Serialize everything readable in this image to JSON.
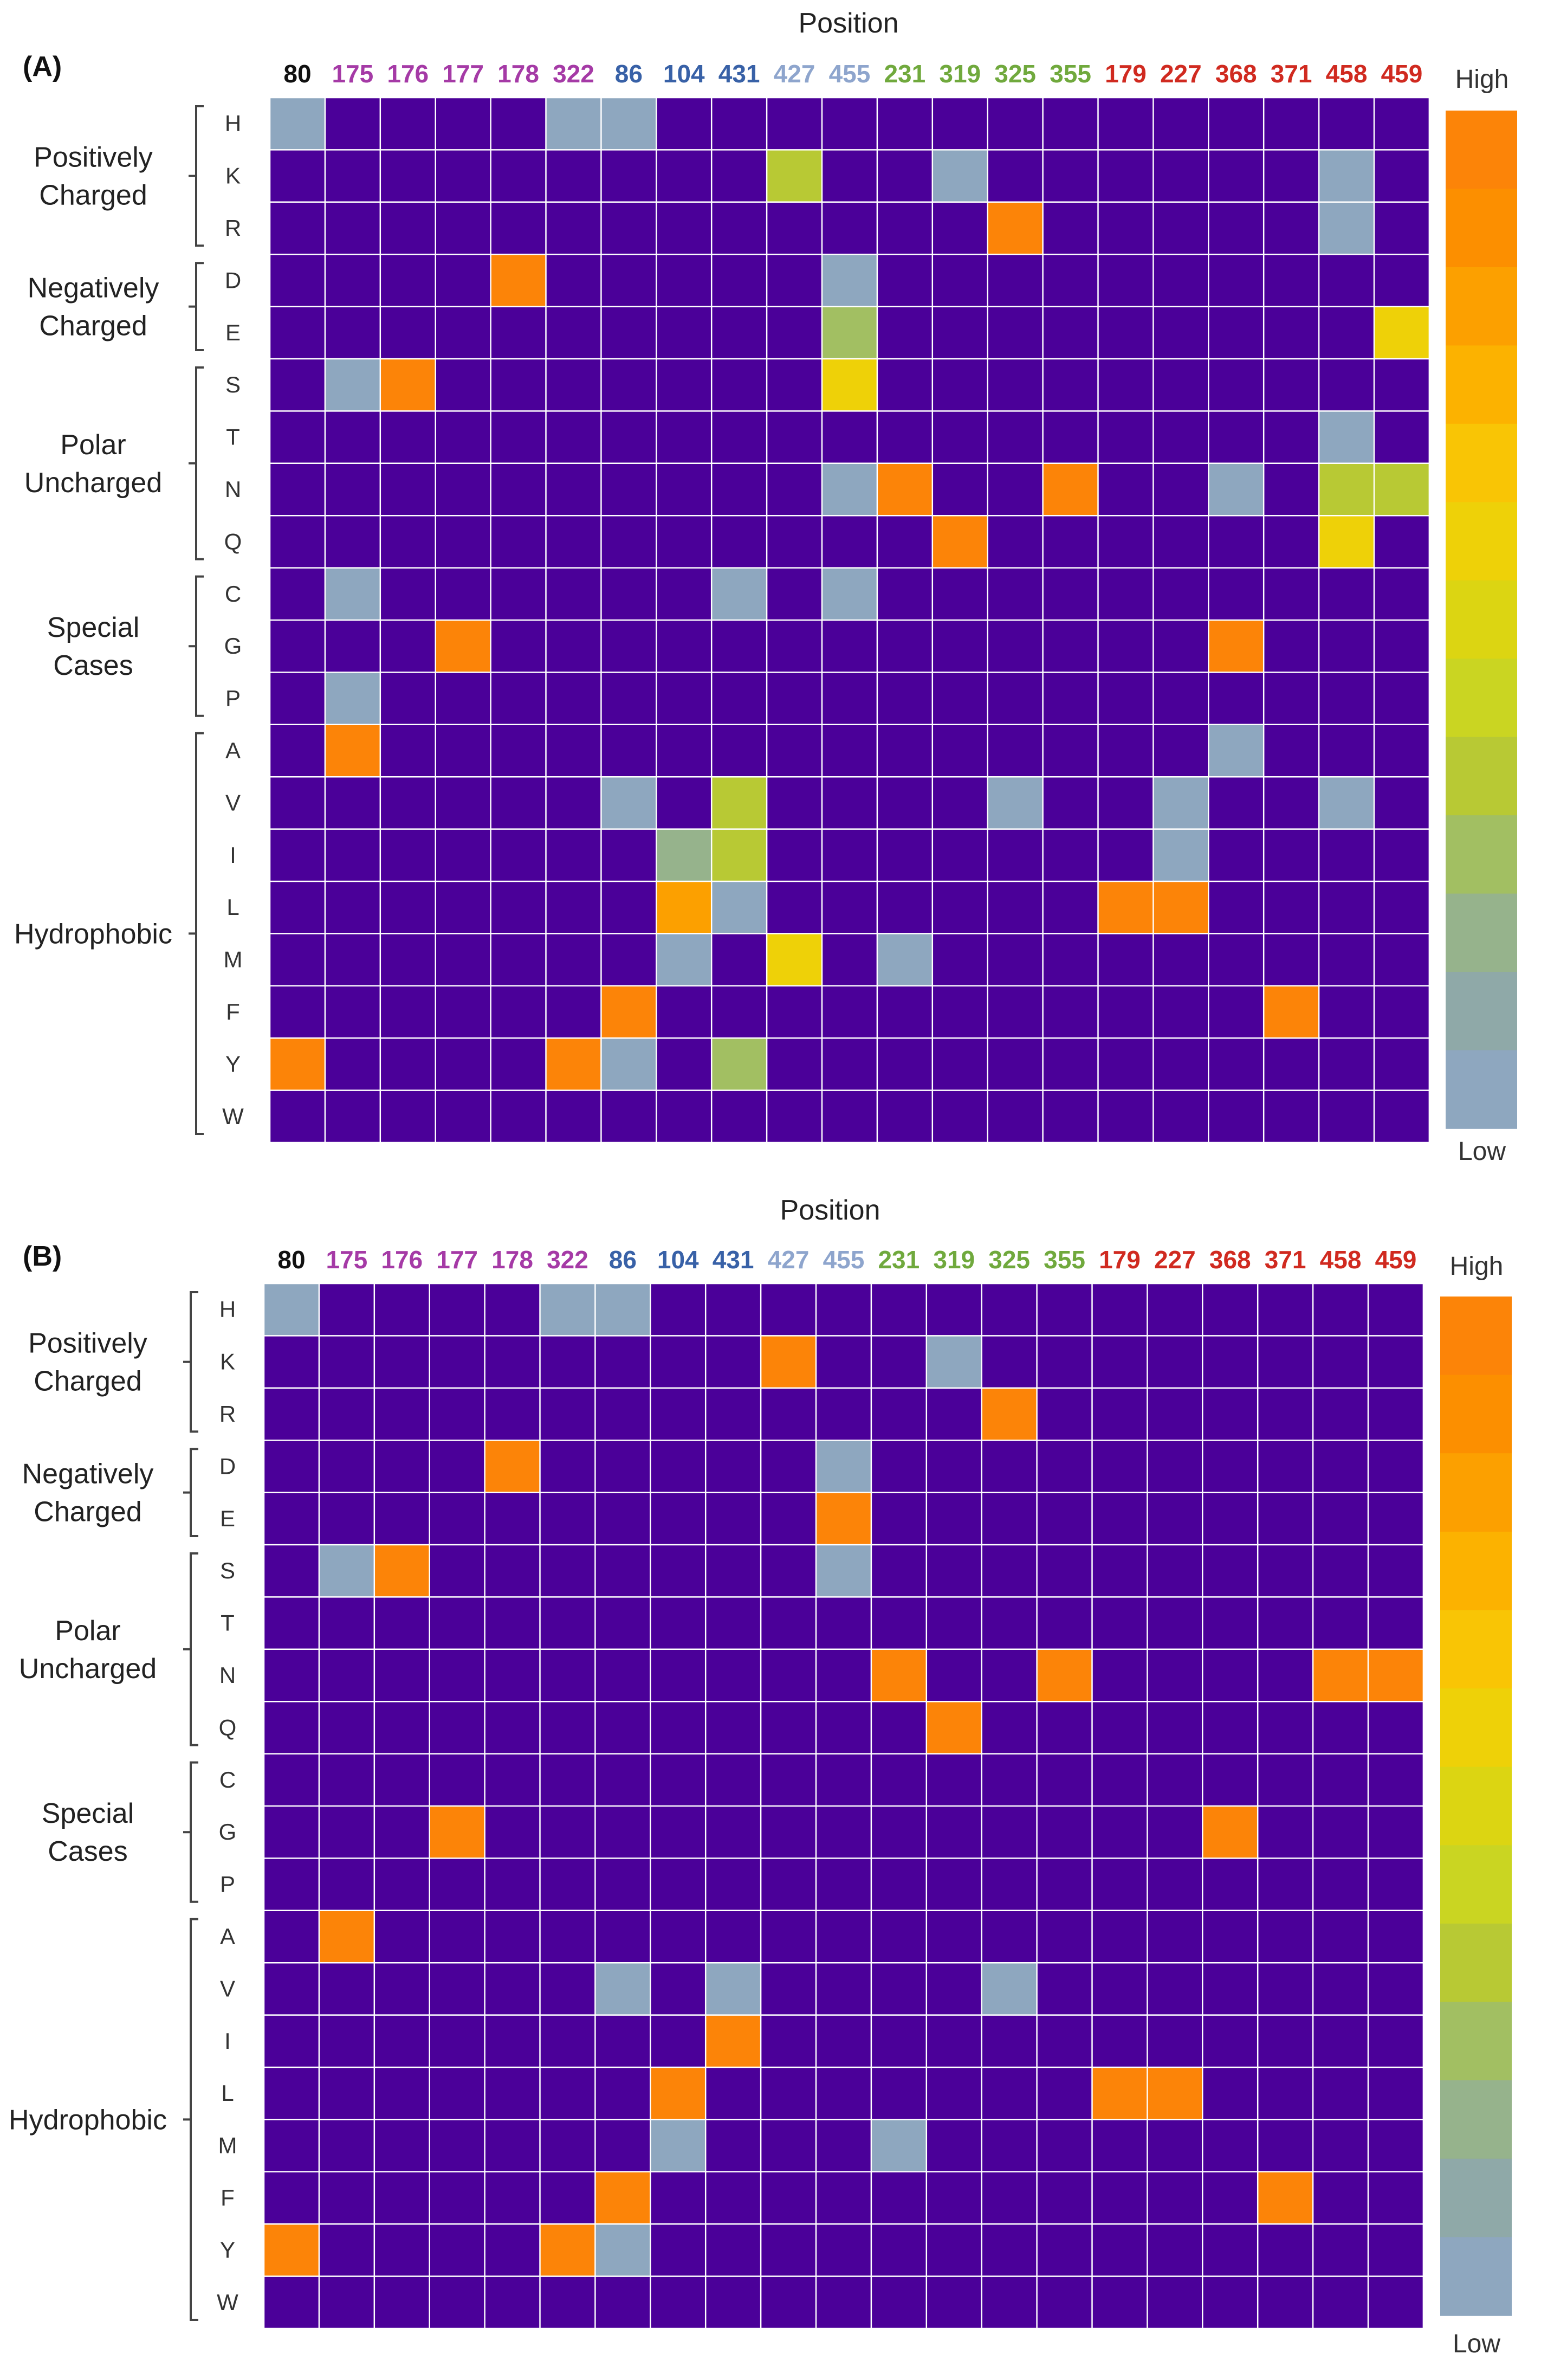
{
  "colors": {
    "background": "#4b0099",
    "grid": "#ffffff",
    "bracket": "#444444",
    "scale": [
      "#8ea7bf",
      "#8fa9a8",
      "#96b38c",
      "#a2bf62",
      "#b8c934",
      "#cad522",
      "#dcd512",
      "#eed108",
      "#f9c505",
      "#fcb200",
      "#fca000",
      "#fc8f00",
      "#fc8408"
    ],
    "col_groups": {
      "k": "#111111",
      "p": "#a53aa6",
      "b": "#3861a7",
      "lb": "#8ea5cd",
      "g": "#70a93d",
      "r": "#d02a20"
    }
  },
  "chart_data": [
    {
      "type": "heatmap",
      "panel_label": "(A)",
      "title": "Position",
      "xlabel": "Position",
      "x_categories": [
        "80",
        "175",
        "176",
        "177",
        "178",
        "322",
        "86",
        "104",
        "431",
        "427",
        "455",
        "231",
        "319",
        "325",
        "355",
        "179",
        "227",
        "368",
        "371",
        "458",
        "459"
      ],
      "x_category_groups": [
        "k",
        "p",
        "p",
        "p",
        "p",
        "p",
        "b",
        "b",
        "b",
        "lb",
        "lb",
        "g",
        "g",
        "g",
        "g",
        "r",
        "r",
        "r",
        "r",
        "r",
        "r"
      ],
      "y_categories": [
        "H",
        "K",
        "R",
        "D",
        "E",
        "S",
        "T",
        "N",
        "Q",
        "C",
        "G",
        "P",
        "A",
        "V",
        "I",
        "L",
        "M",
        "F",
        "Y",
        "W"
      ],
      "y_groups": [
        {
          "label": "Positively\nCharged",
          "rows": [
            "H",
            "R"
          ]
        },
        {
          "label": "Negatively\nCharged",
          "rows": [
            "D",
            "E"
          ]
        },
        {
          "label": "Polar\nUncharged",
          "rows": [
            "S",
            "Q"
          ]
        },
        {
          "label": "Special\nCases",
          "rows": [
            "C",
            "P"
          ]
        },
        {
          "label": "Hydrophobic",
          "rows": [
            "A",
            "W"
          ]
        }
      ],
      "colorbar": {
        "high_label": "High",
        "low_label": "Low",
        "range": [
          0,
          1
        ]
      },
      "value_range": [
        0,
        1
      ],
      "cells": [
        {
          "row": "H",
          "col": "80",
          "value": 0.0
        },
        {
          "row": "H",
          "col": "322",
          "value": 0.0
        },
        {
          "row": "H",
          "col": "86",
          "value": 0.0
        },
        {
          "row": "K",
          "col": "427",
          "value": 0.3
        },
        {
          "row": "K",
          "col": "319",
          "value": 0.0
        },
        {
          "row": "K",
          "col": "458",
          "value": 0.0
        },
        {
          "row": "R",
          "col": "325",
          "value": 1.0
        },
        {
          "row": "R",
          "col": "458",
          "value": 0.0
        },
        {
          "row": "D",
          "col": "178",
          "value": 1.0
        },
        {
          "row": "D",
          "col": "455",
          "value": 0.0
        },
        {
          "row": "E",
          "col": "455",
          "value": 0.25
        },
        {
          "row": "E",
          "col": "459",
          "value": 0.55
        },
        {
          "row": "S",
          "col": "175",
          "value": 0.0
        },
        {
          "row": "S",
          "col": "176",
          "value": 1.0
        },
        {
          "row": "S",
          "col": "455",
          "value": 0.55
        },
        {
          "row": "T",
          "col": "458",
          "value": 0.0
        },
        {
          "row": "N",
          "col": "455",
          "value": 0.0
        },
        {
          "row": "N",
          "col": "231",
          "value": 1.0
        },
        {
          "row": "N",
          "col": "355",
          "value": 1.0
        },
        {
          "row": "N",
          "col": "368",
          "value": 0.0
        },
        {
          "row": "N",
          "col": "458",
          "value": 0.3
        },
        {
          "row": "N",
          "col": "459",
          "value": 0.3
        },
        {
          "row": "Q",
          "col": "319",
          "value": 1.0
        },
        {
          "row": "Q",
          "col": "458",
          "value": 0.55
        },
        {
          "row": "C",
          "col": "175",
          "value": 0.0
        },
        {
          "row": "C",
          "col": "431",
          "value": 0.0
        },
        {
          "row": "C",
          "col": "455",
          "value": 0.0
        },
        {
          "row": "G",
          "col": "177",
          "value": 1.0
        },
        {
          "row": "G",
          "col": "368",
          "value": 1.0
        },
        {
          "row": "P",
          "col": "175",
          "value": 0.0
        },
        {
          "row": "A",
          "col": "175",
          "value": 1.0
        },
        {
          "row": "A",
          "col": "368",
          "value": 0.0
        },
        {
          "row": "V",
          "col": "86",
          "value": 0.0
        },
        {
          "row": "V",
          "col": "431",
          "value": 0.35
        },
        {
          "row": "V",
          "col": "325",
          "value": 0.0
        },
        {
          "row": "V",
          "col": "227",
          "value": 0.0
        },
        {
          "row": "V",
          "col": "458",
          "value": 0.0
        },
        {
          "row": "I",
          "col": "104",
          "value": 0.2
        },
        {
          "row": "I",
          "col": "431",
          "value": 0.3
        },
        {
          "row": "I",
          "col": "227",
          "value": 0.0
        },
        {
          "row": "L",
          "col": "104",
          "value": 0.8
        },
        {
          "row": "L",
          "col": "431",
          "value": 0.0
        },
        {
          "row": "L",
          "col": "179",
          "value": 1.0
        },
        {
          "row": "L",
          "col": "227",
          "value": 1.0
        },
        {
          "row": "M",
          "col": "104",
          "value": 0.0
        },
        {
          "row": "M",
          "col": "427",
          "value": 0.6
        },
        {
          "row": "M",
          "col": "231",
          "value": 0.0
        },
        {
          "row": "F",
          "col": "86",
          "value": 1.0
        },
        {
          "row": "F",
          "col": "371",
          "value": 1.0
        },
        {
          "row": "Y",
          "col": "80",
          "value": 1.0
        },
        {
          "row": "Y",
          "col": "322",
          "value": 1.0
        },
        {
          "row": "Y",
          "col": "86",
          "value": 0.0
        },
        {
          "row": "Y",
          "col": "431",
          "value": 0.25
        }
      ]
    },
    {
      "type": "heatmap",
      "panel_label": "(B)",
      "title": "Position",
      "xlabel": "Position",
      "x_categories": [
        "80",
        "175",
        "176",
        "177",
        "178",
        "322",
        "86",
        "104",
        "431",
        "427",
        "455",
        "231",
        "319",
        "325",
        "355",
        "179",
        "227",
        "368",
        "371",
        "458",
        "459"
      ],
      "x_category_groups": [
        "k",
        "p",
        "p",
        "p",
        "p",
        "p",
        "b",
        "b",
        "b",
        "lb",
        "lb",
        "g",
        "g",
        "g",
        "g",
        "r",
        "r",
        "r",
        "r",
        "r",
        "r"
      ],
      "y_categories": [
        "H",
        "K",
        "R",
        "D",
        "E",
        "S",
        "T",
        "N",
        "Q",
        "C",
        "G",
        "P",
        "A",
        "V",
        "I",
        "L",
        "M",
        "F",
        "Y",
        "W"
      ],
      "y_groups": [
        {
          "label": "Positively\nCharged",
          "rows": [
            "H",
            "R"
          ]
        },
        {
          "label": "Negatively\nCharged",
          "rows": [
            "D",
            "E"
          ]
        },
        {
          "label": "Polar\nUncharged",
          "rows": [
            "S",
            "Q"
          ]
        },
        {
          "label": "Special\nCases",
          "rows": [
            "C",
            "P"
          ]
        },
        {
          "label": "Hydrophobic",
          "rows": [
            "A",
            "W"
          ]
        }
      ],
      "colorbar": {
        "high_label": "High",
        "low_label": "Low",
        "range": [
          0,
          1
        ]
      },
      "value_range": [
        0,
        1
      ],
      "cells": [
        {
          "row": "H",
          "col": "80",
          "value": 0.0
        },
        {
          "row": "H",
          "col": "322",
          "value": 0.0
        },
        {
          "row": "H",
          "col": "86",
          "value": 0.0
        },
        {
          "row": "K",
          "col": "427",
          "value": 1.0
        },
        {
          "row": "K",
          "col": "319",
          "value": 0.0
        },
        {
          "row": "R",
          "col": "325",
          "value": 1.0
        },
        {
          "row": "D",
          "col": "178",
          "value": 1.0
        },
        {
          "row": "D",
          "col": "455",
          "value": 0.0
        },
        {
          "row": "E",
          "col": "455",
          "value": 1.0
        },
        {
          "row": "S",
          "col": "175",
          "value": 0.0
        },
        {
          "row": "S",
          "col": "176",
          "value": 1.0
        },
        {
          "row": "S",
          "col": "455",
          "value": 0.0
        },
        {
          "row": "N",
          "col": "231",
          "value": 1.0
        },
        {
          "row": "N",
          "col": "355",
          "value": 1.0
        },
        {
          "row": "N",
          "col": "458",
          "value": 1.0
        },
        {
          "row": "N",
          "col": "459",
          "value": 1.0
        },
        {
          "row": "Q",
          "col": "319",
          "value": 1.0
        },
        {
          "row": "G",
          "col": "177",
          "value": 1.0
        },
        {
          "row": "G",
          "col": "368",
          "value": 1.0
        },
        {
          "row": "A",
          "col": "175",
          "value": 1.0
        },
        {
          "row": "V",
          "col": "86",
          "value": 0.0
        },
        {
          "row": "V",
          "col": "431",
          "value": 0.0
        },
        {
          "row": "V",
          "col": "325",
          "value": 0.0
        },
        {
          "row": "I",
          "col": "431",
          "value": 1.0
        },
        {
          "row": "L",
          "col": "104",
          "value": 1.0
        },
        {
          "row": "L",
          "col": "179",
          "value": 1.0
        },
        {
          "row": "L",
          "col": "227",
          "value": 1.0
        },
        {
          "row": "M",
          "col": "104",
          "value": 0.0
        },
        {
          "row": "M",
          "col": "231",
          "value": 0.0
        },
        {
          "row": "F",
          "col": "86",
          "value": 1.0
        },
        {
          "row": "F",
          "col": "371",
          "value": 1.0
        },
        {
          "row": "Y",
          "col": "80",
          "value": 1.0
        },
        {
          "row": "Y",
          "col": "322",
          "value": 1.0
        },
        {
          "row": "Y",
          "col": "86",
          "value": 0.0
        }
      ]
    }
  ]
}
